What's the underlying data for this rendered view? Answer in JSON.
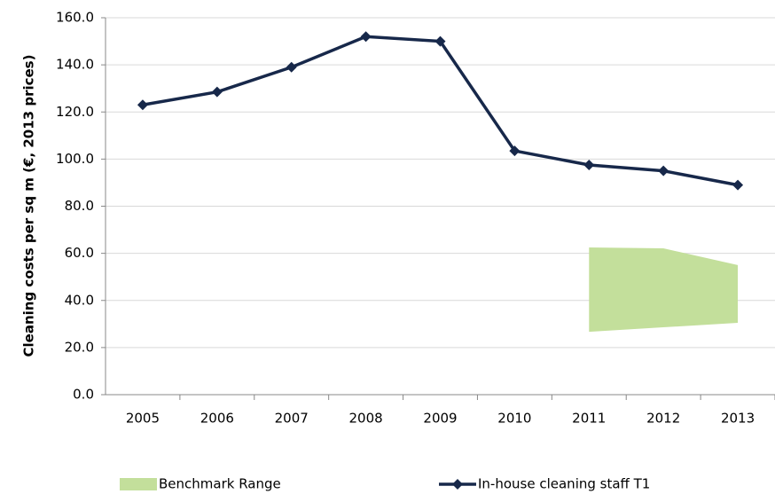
{
  "chart_data": {
    "type": "line",
    "y_label": "Cleaning costs per sq m (€, 2013 prices)",
    "categories": [
      "2005",
      "2006",
      "2007",
      "2008",
      "2009",
      "2010",
      "2011",
      "2012",
      "2013"
    ],
    "series": [
      {
        "name": "Benchmark Range",
        "type": "range",
        "color": "#c3df9b",
        "low": [
          null,
          null,
          null,
          null,
          null,
          null,
          26.7,
          28.6,
          30.5
        ],
        "high": [
          null,
          null,
          null,
          null,
          null,
          null,
          62.5,
          62.1,
          55.0
        ]
      },
      {
        "name": "In-house cleaning staff T1",
        "type": "line",
        "color": "#17284a",
        "values": [
          123.0,
          128.5,
          139.0,
          152.0,
          150.0,
          103.5,
          97.5,
          95.0,
          89.0
        ]
      }
    ],
    "ylim": [
      0,
      160
    ],
    "yticks": [
      {
        "value": 0,
        "label": "0.0"
      },
      {
        "value": 20,
        "label": "20.0"
      },
      {
        "value": 40,
        "label": "40.0"
      },
      {
        "value": 60,
        "label": "60.0"
      },
      {
        "value": 80,
        "label": "80.0"
      },
      {
        "value": 100,
        "label": "100.0"
      },
      {
        "value": 120,
        "label": "120.0"
      },
      {
        "value": 140,
        "label": "140.0"
      },
      {
        "value": 160,
        "label": "160.0"
      }
    ],
    "grid": true
  }
}
